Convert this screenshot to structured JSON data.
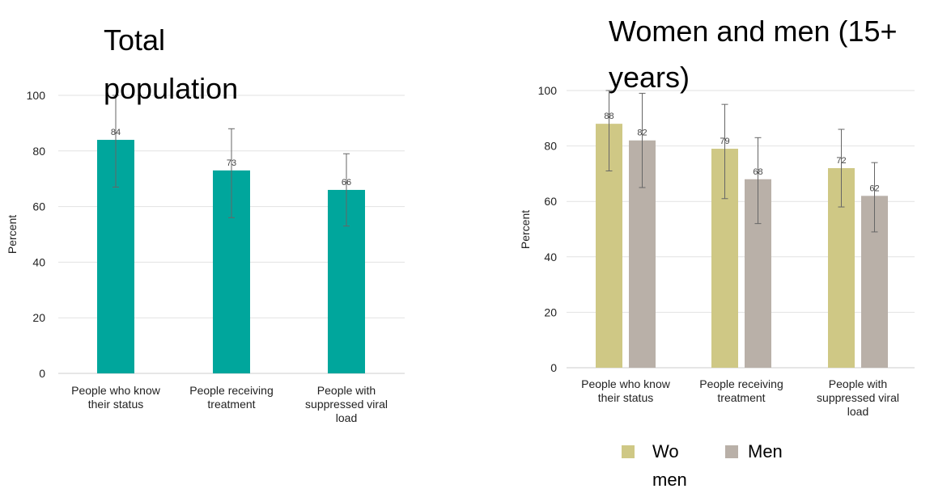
{
  "chart_data": [
    {
      "type": "bar",
      "title_lines": [
        "Total",
        "population"
      ],
      "ylabel": "Percent",
      "ylim": [
        0,
        100
      ],
      "yticks": [
        0,
        20,
        40,
        60,
        80,
        100
      ],
      "grid": true,
      "categories": [
        [
          "People who know",
          "their status"
        ],
        [
          "People receiving",
          "treatment"
        ],
        [
          "People with",
          "suppressed viral",
          "load"
        ]
      ],
      "series": [
        {
          "color": "#00a69c",
          "values": [
            84,
            73,
            66
          ],
          "labels": [
            "84",
            "73",
            "66"
          ],
          "error_low": [
            67,
            56,
            53
          ],
          "error_high": [
            100,
            88,
            79
          ]
        }
      ]
    },
    {
      "type": "bar",
      "title_lines": [
        "Women and men (15+",
        "years)"
      ],
      "ylabel": "Percent",
      "ylim": [
        0,
        100
      ],
      "yticks": [
        0,
        20,
        40,
        60,
        80,
        100
      ],
      "grid": true,
      "legend_position": "bottom",
      "categories": [
        [
          "People who know",
          "their status"
        ],
        [
          "People receiving",
          "treatment"
        ],
        [
          "People with",
          "suppressed viral",
          "load"
        ]
      ],
      "series": [
        {
          "name_lines": [
            "Wo",
            "men"
          ],
          "color": "#cfc885",
          "values": [
            88,
            79,
            72
          ],
          "labels": [
            "88",
            "79",
            "72"
          ],
          "error_low": [
            71,
            61,
            58
          ],
          "error_high": [
            100,
            95,
            86
          ]
        },
        {
          "name_lines": [
            "Men"
          ],
          "color": "#b9b0a8",
          "values": [
            82,
            68,
            62
          ],
          "labels": [
            "82",
            "68",
            "62"
          ],
          "error_low": [
            65,
            52,
            49
          ],
          "error_high": [
            99,
            83,
            74
          ]
        }
      ]
    }
  ]
}
